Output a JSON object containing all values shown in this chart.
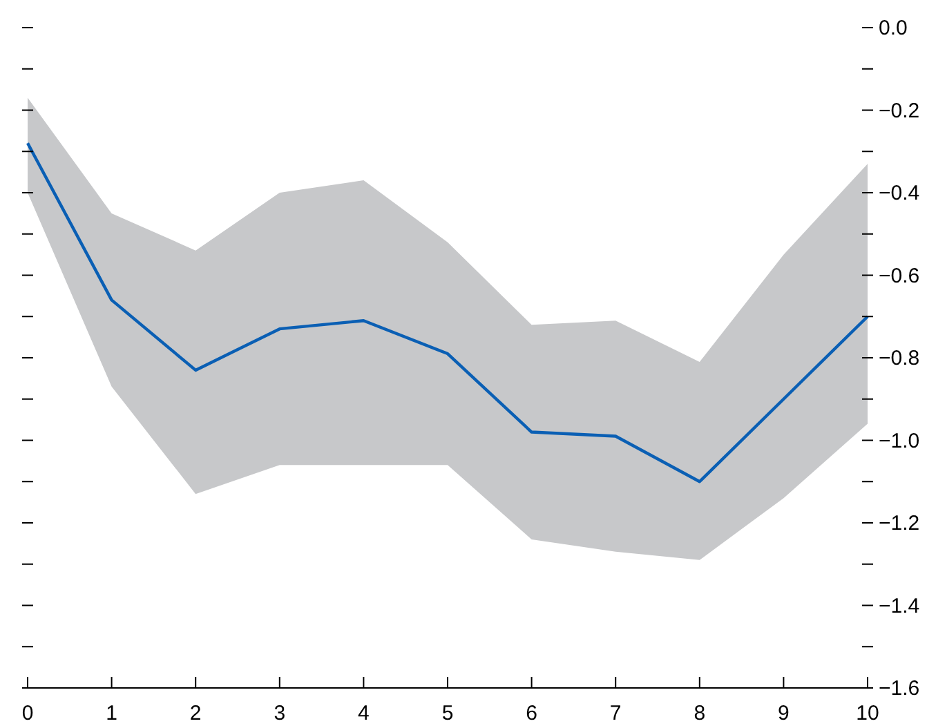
{
  "chart_data": {
    "type": "line",
    "x": [
      0,
      1,
      2,
      3,
      4,
      5,
      6,
      7,
      8,
      9,
      10
    ],
    "series": [
      {
        "color": "#0a5fb4",
        "values": [
          -0.28,
          -0.66,
          -0.83,
          -0.73,
          -0.71,
          -0.79,
          -0.98,
          -0.99,
          -1.1,
          -0.9,
          -0.7
        ],
        "lower": [
          -0.4,
          -0.87,
          -1.13,
          -1.06,
          -1.06,
          -1.06,
          -1.24,
          -1.27,
          -1.29,
          -1.14,
          -0.96
        ],
        "upper": [
          -0.17,
          -0.45,
          -0.54,
          -0.4,
          -0.37,
          -0.52,
          -0.72,
          -0.71,
          -0.81,
          -0.55,
          -0.33
        ]
      }
    ],
    "xlim": [
      0,
      10
    ],
    "xticks": [
      0,
      1,
      2,
      3,
      4,
      5,
      6,
      7,
      8,
      9,
      10
    ],
    "ylim": [
      -1.6,
      0
    ],
    "yticks": [
      {
        "value": 0,
        "label": "0.0"
      },
      {
        "value": -0.1,
        "label": null
      },
      {
        "value": -0.2,
        "label": "−0.2"
      },
      {
        "value": -0.3,
        "label": null
      },
      {
        "value": -0.4,
        "label": "−0.4"
      },
      {
        "value": -0.5,
        "label": null
      },
      {
        "value": -0.6,
        "label": "−0.6"
      },
      {
        "value": -0.7,
        "label": null
      },
      {
        "value": -0.8,
        "label": "−0.8"
      },
      {
        "value": -0.9,
        "label": null
      },
      {
        "value": -1,
        "label": "−1.0"
      },
      {
        "value": -1.1,
        "label": null
      },
      {
        "value": -1.2,
        "label": "−1.2"
      },
      {
        "value": -1.3,
        "label": null
      },
      {
        "value": -1.4,
        "label": "−1.4"
      },
      {
        "value": -1.5,
        "label": null
      },
      {
        "value": -1.6,
        "label": "−1.6"
      }
    ],
    "grid": false,
    "marker": "none",
    "line_style": "solid"
  }
}
